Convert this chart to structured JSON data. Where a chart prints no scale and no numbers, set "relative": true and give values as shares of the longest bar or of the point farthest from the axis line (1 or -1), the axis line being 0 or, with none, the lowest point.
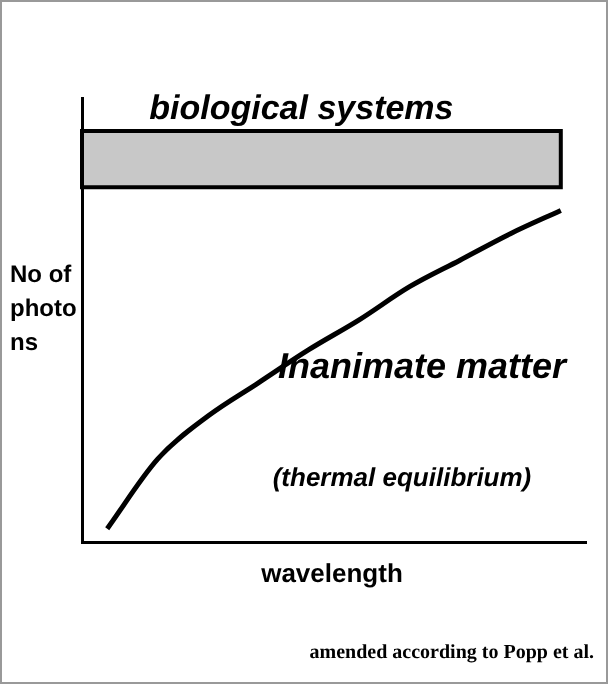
{
  "chart_data": {
    "type": "line",
    "relative": true,
    "xlabel": "wavelength",
    "ylabel": "No of photons",
    "categories": [
      null,
      null,
      null,
      null,
      null,
      null,
      null,
      null,
      null,
      null
    ],
    "values": [
      0.04,
      0.25,
      0.38,
      0.48,
      0.58,
      0.67,
      0.77,
      0.85,
      0.93,
      1
    ],
    "color": "#000000",
    "bands": [
      {
        "axis": "y",
        "from": 1.07,
        "to": 1.24,
        "label": "biological systems",
        "color": "#c8c8c8"
      }
    ],
    "annotations": [
      "Inanimate matter",
      "(thermal equilibrium)",
      "amended according to Popp et al."
    ]
  }
}
